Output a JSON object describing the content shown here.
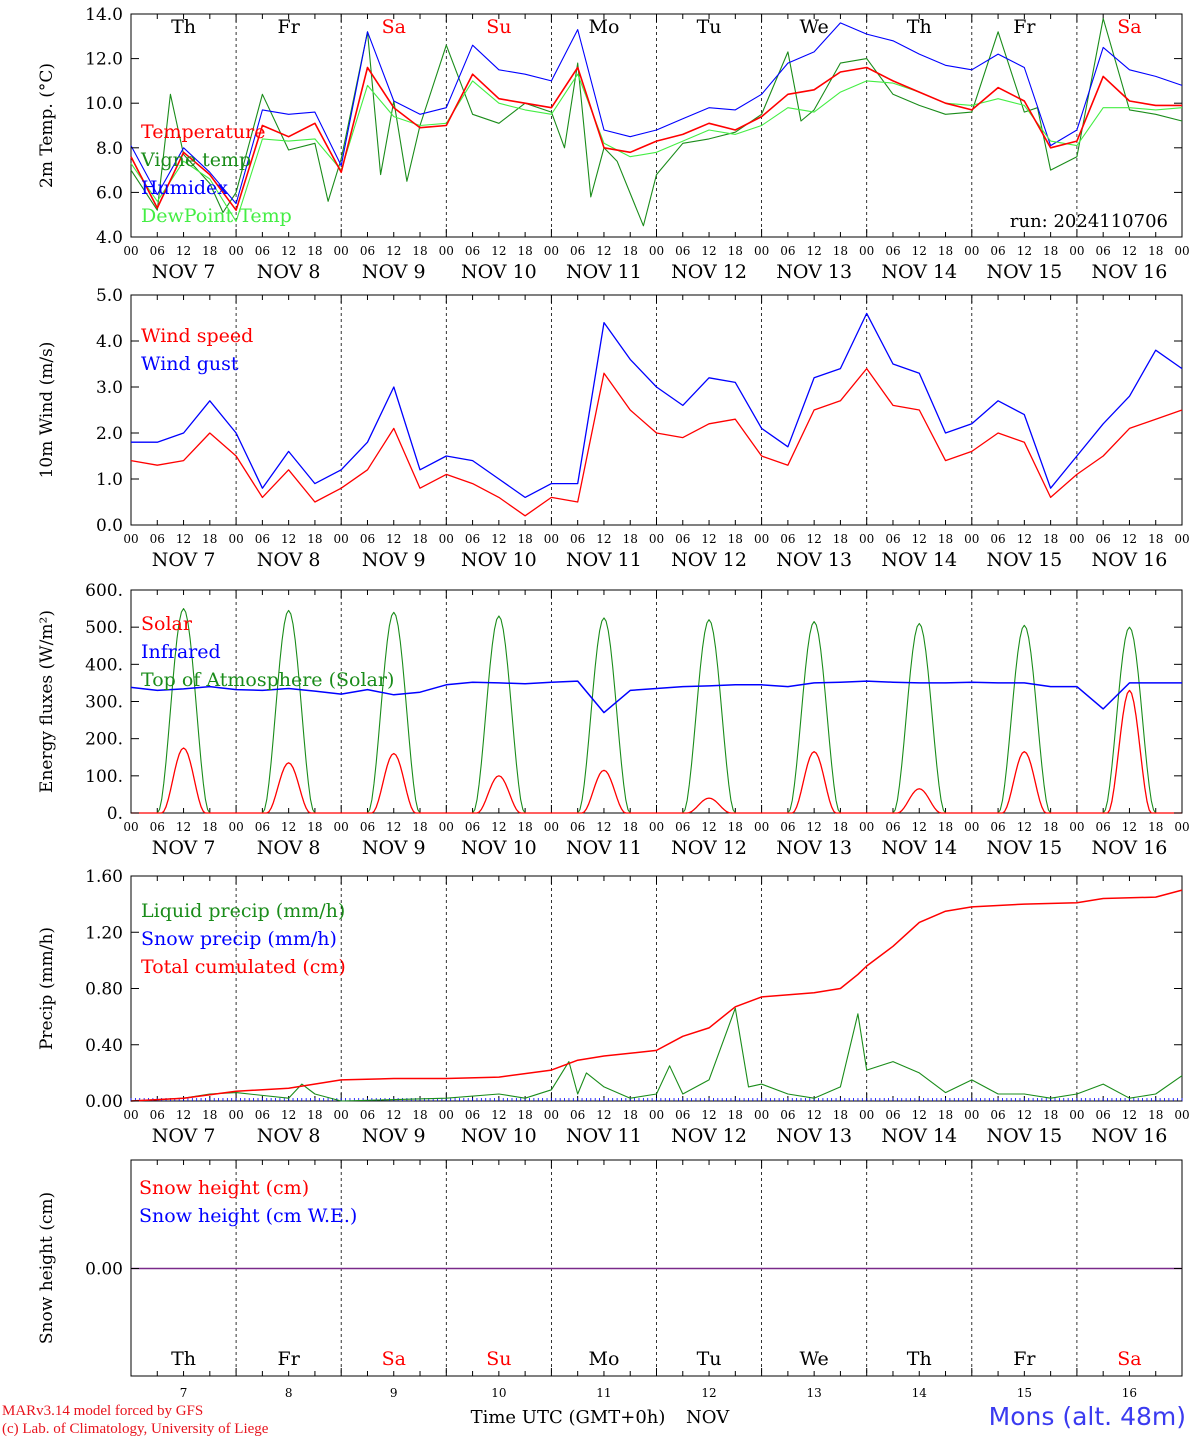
{
  "chart_data": [
    {
      "type": "line",
      "ylabel": "2m Temp. (°C)",
      "ylim": [
        4.0,
        14.0
      ],
      "yticks": [
        "4.0",
        "6.0",
        "8.0",
        "10.0",
        "12.0",
        "14.0"
      ],
      "run_label": "run: 2024110706",
      "series": [
        {
          "name": "Temperature",
          "color": "#ff0000",
          "x": [
            0,
            6,
            12,
            18,
            24,
            30,
            36,
            42,
            48,
            54,
            60,
            66,
            72,
            78,
            84,
            90,
            96,
            102,
            108,
            114,
            120,
            126,
            132,
            138,
            144,
            150,
            156,
            162,
            168,
            174,
            180,
            186,
            192,
            198,
            204,
            210,
            216,
            222,
            228,
            234,
            240
          ],
          "values": [
            7.6,
            5.3,
            7.8,
            6.8,
            5.2,
            9.0,
            8.5,
            9.1,
            6.9,
            11.6,
            9.8,
            8.9,
            9.0,
            11.3,
            10.2,
            10.0,
            9.8,
            11.6,
            8.0,
            7.8,
            8.3,
            8.6,
            9.1,
            8.8,
            9.4,
            10.4,
            10.6,
            11.4,
            11.6,
            11.0,
            10.5,
            10.0,
            9.7,
            10.7,
            10.1,
            8.0,
            8.3,
            11.2,
            10.1,
            9.9,
            9.9
          ]
        },
        {
          "name": "Vigne temp",
          "color": "#1a8c1a",
          "x": [
            0,
            6,
            9,
            12,
            18,
            21,
            24,
            30,
            36,
            42,
            45,
            48,
            54,
            57,
            60,
            63,
            66,
            72,
            78,
            84,
            90,
            96,
            99,
            102,
            105,
            108,
            111,
            117,
            120,
            126,
            132,
            138,
            144,
            150,
            153,
            156,
            162,
            168,
            174,
            180,
            186,
            192,
            198,
            204,
            207,
            210,
            216,
            222,
            228,
            234,
            240
          ],
          "values": [
            7.0,
            5.2,
            10.4,
            7.7,
            6.4,
            5.1,
            6.0,
            10.4,
            7.9,
            8.2,
            5.6,
            7.5,
            13.2,
            6.8,
            10.1,
            6.5,
            9.0,
            12.6,
            9.5,
            9.1,
            10.0,
            9.6,
            8.0,
            11.8,
            5.8,
            8.0,
            7.4,
            4.5,
            6.8,
            8.2,
            8.4,
            8.7,
            9.5,
            12.3,
            9.2,
            9.7,
            11.8,
            12.0,
            10.4,
            9.9,
            9.5,
            9.6,
            13.2,
            9.6,
            9.8,
            7.0,
            7.6,
            13.8,
            9.7,
            9.5,
            9.2
          ]
        },
        {
          "name": "Humidex",
          "color": "#0000ff",
          "x": [
            0,
            6,
            12,
            18,
            24,
            30,
            36,
            42,
            48,
            54,
            60,
            66,
            72,
            78,
            84,
            90,
            96,
            102,
            108,
            114,
            120,
            126,
            132,
            138,
            144,
            150,
            156,
            162,
            168,
            174,
            180,
            186,
            192,
            198,
            204,
            210,
            216,
            222,
            228,
            234,
            240
          ],
          "values": [
            8.1,
            5.9,
            8.0,
            6.9,
            5.5,
            9.7,
            9.5,
            9.6,
            7.2,
            13.2,
            10.1,
            9.5,
            9.8,
            12.6,
            11.5,
            11.3,
            11.0,
            13.3,
            8.8,
            8.5,
            8.8,
            9.3,
            9.8,
            9.7,
            10.4,
            11.8,
            12.3,
            13.6,
            13.1,
            12.8,
            12.2,
            11.7,
            11.5,
            12.2,
            11.6,
            8.1,
            8.8,
            12.5,
            11.5,
            11.2,
            10.8
          ]
        },
        {
          "name": "DewPoint Temp",
          "color": "#44ee44",
          "x": [
            0,
            6,
            12,
            18,
            24,
            30,
            36,
            42,
            48,
            54,
            60,
            66,
            72,
            78,
            84,
            90,
            96,
            102,
            108,
            114,
            120,
            126,
            132,
            138,
            144,
            150,
            156,
            162,
            168,
            174,
            180,
            186,
            192,
            198,
            204,
            210,
            216,
            222,
            228,
            234,
            240
          ],
          "values": [
            7.3,
            5.6,
            7.4,
            6.6,
            4.7,
            8.4,
            8.3,
            8.4,
            7.0,
            10.8,
            9.4,
            9.0,
            9.1,
            11.0,
            10.0,
            9.7,
            9.5,
            11.3,
            8.2,
            7.6,
            7.8,
            8.3,
            8.8,
            8.6,
            9.0,
            9.8,
            9.6,
            10.5,
            11.0,
            10.9,
            10.5,
            10.0,
            9.9,
            10.2,
            9.9,
            8.3,
            8.1,
            9.8,
            9.8,
            9.7,
            9.8
          ]
        }
      ],
      "day_labels": [
        {
          "text": "Th",
          "color": "#000000"
        },
        {
          "text": "Fr",
          "color": "#000000"
        },
        {
          "text": "Sa",
          "color": "#ff0000"
        },
        {
          "text": "Su",
          "color": "#ff0000"
        },
        {
          "text": "Mo",
          "color": "#000000"
        },
        {
          "text": "Tu",
          "color": "#000000"
        },
        {
          "text": "We",
          "color": "#000000"
        },
        {
          "text": "Th",
          "color": "#000000"
        },
        {
          "text": "Fr",
          "color": "#000000"
        },
        {
          "text": "Sa",
          "color": "#ff0000"
        }
      ]
    },
    {
      "type": "line",
      "ylabel": "10m Wind (m/s)",
      "ylim": [
        0.0,
        5.0
      ],
      "yticks": [
        "0.0",
        "1.0",
        "2.0",
        "3.0",
        "4.0",
        "5.0"
      ],
      "series": [
        {
          "name": "Wind speed",
          "color": "#ff0000",
          "x": [
            0,
            6,
            12,
            18,
            24,
            30,
            36,
            42,
            48,
            54,
            60,
            66,
            72,
            78,
            84,
            90,
            96,
            102,
            108,
            114,
            120,
            126,
            132,
            138,
            144,
            150,
            156,
            162,
            168,
            174,
            180,
            186,
            192,
            198,
            204,
            210,
            216,
            222,
            228,
            234,
            240
          ],
          "values": [
            1.4,
            1.3,
            1.4,
            2.0,
            1.5,
            0.6,
            1.2,
            0.5,
            0.8,
            1.2,
            2.1,
            0.8,
            1.1,
            0.9,
            0.6,
            0.2,
            0.6,
            0.5,
            3.3,
            2.5,
            2.0,
            1.9,
            2.2,
            2.3,
            1.5,
            1.3,
            2.5,
            2.7,
            3.4,
            2.6,
            2.5,
            1.4,
            1.6,
            2.0,
            1.8,
            0.6,
            1.1,
            1.5,
            2.1,
            2.3,
            2.5
          ]
        },
        {
          "name": "Wind gust",
          "color": "#0000ff",
          "x": [
            0,
            6,
            12,
            18,
            24,
            30,
            36,
            42,
            48,
            54,
            60,
            66,
            72,
            78,
            84,
            90,
            96,
            102,
            108,
            114,
            120,
            126,
            132,
            138,
            144,
            150,
            156,
            162,
            168,
            174,
            180,
            186,
            192,
            198,
            204,
            210,
            216,
            222,
            228,
            234,
            240
          ],
          "values": [
            1.8,
            1.8,
            2.0,
            2.7,
            2.0,
            0.8,
            1.6,
            0.9,
            1.2,
            1.8,
            3.0,
            1.2,
            1.5,
            1.4,
            1.0,
            0.6,
            0.9,
            0.9,
            4.4,
            3.6,
            3.0,
            2.6,
            3.2,
            3.1,
            2.1,
            1.7,
            3.2,
            3.4,
            4.6,
            3.5,
            3.3,
            2.0,
            2.2,
            2.7,
            2.4,
            0.8,
            1.5,
            2.2,
            2.8,
            3.8,
            3.4
          ]
        }
      ]
    },
    {
      "type": "line",
      "ylabel": "Energy fluxes (W/m²)",
      "ylim": [
        0,
        600
      ],
      "yticks": [
        "0.",
        "100.",
        "200.",
        "300.",
        "400.",
        "500.",
        "600."
      ],
      "series": [
        {
          "name": "Solar",
          "color": "#ff0000",
          "day_peaks": [
            175,
            135,
            160,
            100,
            115,
            40,
            165,
            65,
            165,
            330
          ]
        },
        {
          "name": "Infrared",
          "color": "#0000ff",
          "x": [
            0,
            6,
            12,
            18,
            24,
            30,
            36,
            42,
            48,
            54,
            60,
            66,
            72,
            78,
            84,
            90,
            96,
            102,
            108,
            114,
            120,
            126,
            132,
            138,
            144,
            150,
            156,
            162,
            168,
            174,
            180,
            186,
            192,
            198,
            204,
            210,
            216,
            222,
            228,
            234,
            240
          ],
          "values": [
            338,
            330,
            334,
            340,
            332,
            330,
            335,
            328,
            320,
            332,
            318,
            325,
            345,
            352,
            350,
            348,
            352,
            355,
            270,
            330,
            335,
            340,
            342,
            345,
            345,
            340,
            350,
            352,
            355,
            352,
            350,
            350,
            352,
            350,
            350,
            340,
            340,
            280,
            350,
            350,
            350
          ]
        },
        {
          "name": "Top of Atmosphere (Solar)",
          "color": "#1a8c1a",
          "day_peaks": [
            550,
            545,
            540,
            530,
            525,
            520,
            515,
            510,
            505,
            500
          ]
        }
      ]
    },
    {
      "type": "line",
      "ylabel": "Precip (mm/h)",
      "ylim": [
        0.0,
        1.6
      ],
      "yticks": [
        "0.00",
        "0.40",
        "0.80",
        "1.20",
        "1.60"
      ],
      "series": [
        {
          "name": "Liquid precip (mm/h)",
          "color": "#1a8c1a",
          "x": [
            0,
            12,
            18,
            24,
            36,
            39,
            42,
            48,
            72,
            84,
            90,
            96,
            100,
            102,
            104,
            108,
            114,
            120,
            123,
            126,
            132,
            138,
            141,
            144,
            150,
            156,
            162,
            166,
            168,
            174,
            180,
            186,
            192,
            198,
            204,
            210,
            216,
            222,
            228,
            234,
            240
          ],
          "values": [
            0,
            0.02,
            0.05,
            0.06,
            0.02,
            0.12,
            0.05,
            0,
            0.02,
            0.05,
            0.02,
            0.08,
            0.28,
            0.05,
            0.2,
            0.1,
            0.02,
            0.05,
            0.25,
            0.05,
            0.15,
            0.66,
            0.1,
            0.12,
            0.05,
            0.02,
            0.1,
            0.62,
            0.22,
            0.28,
            0.2,
            0.06,
            0.15,
            0.05,
            0.05,
            0.02,
            0.05,
            0.12,
            0.02,
            0.05,
            0.18
          ]
        },
        {
          "name": "Snow precip (mm/h)",
          "color": "#0000ff",
          "x": [
            0,
            240
          ],
          "values": [
            0,
            0
          ]
        },
        {
          "name": "Total cumulated (cm)",
          "color": "#ff0000",
          "x": [
            0,
            12,
            24,
            36,
            48,
            60,
            72,
            84,
            96,
            102,
            108,
            120,
            126,
            132,
            138,
            144,
            156,
            162,
            166,
            168,
            174,
            180,
            186,
            192,
            204,
            216,
            222,
            234,
            240
          ],
          "values": [
            0,
            0.02,
            0.07,
            0.09,
            0.15,
            0.16,
            0.16,
            0.17,
            0.22,
            0.29,
            0.32,
            0.36,
            0.46,
            0.52,
            0.67,
            0.74,
            0.77,
            0.8,
            0.9,
            0.96,
            1.1,
            1.27,
            1.35,
            1.38,
            1.4,
            1.41,
            1.44,
            1.45,
            1.5
          ]
        }
      ]
    },
    {
      "type": "line",
      "ylabel": "Snow height (cm)",
      "yticks": [
        "0.00"
      ],
      "series": [
        {
          "name": "Snow height (cm)",
          "color": "#ff0000",
          "x": [
            0,
            240
          ],
          "values": [
            0,
            0
          ]
        },
        {
          "name": "Snow height (cm W.E.)",
          "color": "#0000ff",
          "x": [
            0,
            240
          ],
          "values": [
            0,
            0
          ]
        }
      ],
      "day_labels": [
        {
          "text": "Th",
          "color": "#000000"
        },
        {
          "text": "Fr",
          "color": "#000000"
        },
        {
          "text": "Sa",
          "color": "#ff0000"
        },
        {
          "text": "Su",
          "color": "#ff0000"
        },
        {
          "text": "Mo",
          "color": "#000000"
        },
        {
          "text": "Tu",
          "color": "#000000"
        },
        {
          "text": "We",
          "color": "#000000"
        },
        {
          "text": "Th",
          "color": "#000000"
        },
        {
          "text": "Fr",
          "color": "#000000"
        },
        {
          "text": "Sa",
          "color": "#ff0000"
        }
      ],
      "day_numbers": [
        "7",
        "8",
        "9",
        "10",
        "11",
        "12",
        "13",
        "14",
        "15",
        "16"
      ],
      "xlabel": "Time UTC (GMT+0h)",
      "month": "NOV"
    }
  ],
  "hour_ticks": [
    "00",
    "06",
    "12",
    "18"
  ],
  "date_labels": [
    "NOV   7",
    "NOV   8",
    "NOV   9",
    "NOV 10",
    "NOV 11",
    "NOV 12",
    "NOV 13",
    "NOV 14",
    "NOV 15",
    "NOV 16"
  ],
  "credits": {
    "line1": "MARv3.14 model forced by GFS",
    "line2": "(c) Lab. of Climatology, University of Liege"
  },
  "station": "Mons (alt. 48m)"
}
